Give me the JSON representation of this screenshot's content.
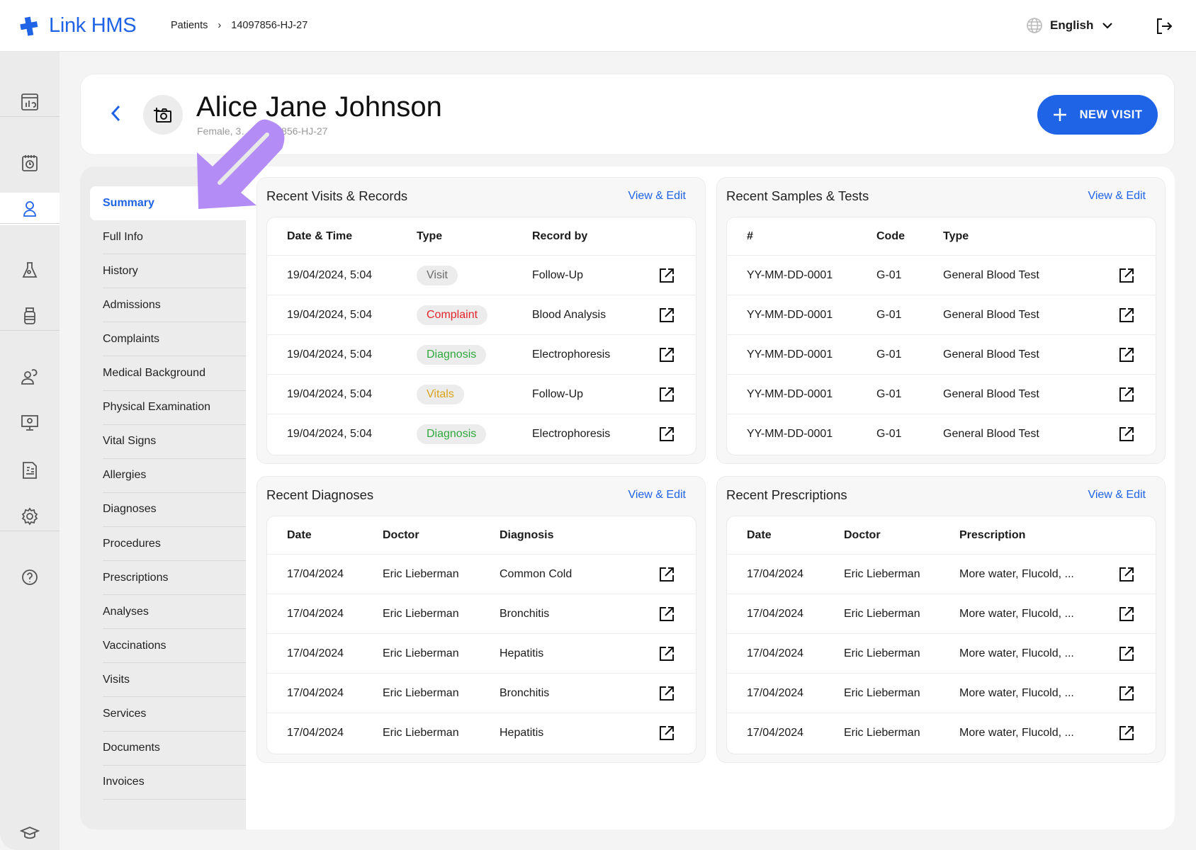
{
  "header": {
    "brand": "Link HMS",
    "breadcrumb": [
      "Patients",
      "14097856-HJ-27"
    ],
    "language": "English"
  },
  "rail": [
    {
      "icon": "dashboard-icon"
    },
    {
      "icon": "calendar-clock-icon"
    },
    {
      "icon": "patient-icon",
      "active": true
    },
    {
      "icon": "lab-flask-icon"
    },
    {
      "icon": "medicine-bottle-icon"
    },
    {
      "icon": "staff-users-icon"
    },
    {
      "icon": "monitor-icon"
    },
    {
      "icon": "billing-icon"
    },
    {
      "icon": "settings-icon"
    },
    {
      "icon": "help-icon"
    },
    {
      "icon": "academy-icon"
    }
  ],
  "patient": {
    "name": "Alice Jane Johnson",
    "subtitle": "Female, 3… 14097856-HJ-27",
    "new_visit": "NEW VISIT"
  },
  "subnav": [
    "Summary",
    "Full Info",
    "History",
    "Admissions",
    "Complaints",
    "Medical Background",
    "Physical Examination",
    "Vital Signs",
    "Allergies",
    "Diagnoses",
    "Procedures",
    "Prescriptions",
    "Analyses",
    "Vaccinations",
    "Visits",
    "Services",
    "Documents",
    "Invoices"
  ],
  "colors": {
    "accent": "#1f63e6",
    "complaint": "#e3242b",
    "diagnosis": "#2eaa3c",
    "vitals": "#d9a21b",
    "visit": "#6b6b6b",
    "annotation_arrow": "#b48cf5"
  },
  "panels": [
    {
      "title": "Recent Visits & Records",
      "link": "View & Edit",
      "columns": [
        "Date & Time",
        "Type",
        "Record by"
      ],
      "rows": [
        [
          "19/04/2024, 5:04",
          "Visit",
          "Follow-Up"
        ],
        [
          "19/04/2024, 5:04",
          "Complaint",
          "Blood Analysis"
        ],
        [
          "19/04/2024, 5:04",
          "Diagnosis",
          "Electrophoresis"
        ],
        [
          "19/04/2024, 5:04",
          "Vitals",
          "Follow-Up"
        ],
        [
          "19/04/2024, 5:04",
          "Diagnosis",
          "Electrophoresis"
        ]
      ]
    },
    {
      "title": "Recent Samples & Tests",
      "link": "View & Edit",
      "columns": [
        "#",
        "Code",
        "Type"
      ],
      "rows": [
        [
          "YY-MM-DD-0001",
          "G-01",
          "General Blood Test"
        ],
        [
          "YY-MM-DD-0001",
          "G-01",
          "General Blood Test"
        ],
        [
          "YY-MM-DD-0001",
          "G-01",
          "General Blood Test"
        ],
        [
          "YY-MM-DD-0001",
          "G-01",
          "General Blood Test"
        ],
        [
          "YY-MM-DD-0001",
          "G-01",
          "General Blood Test"
        ]
      ]
    },
    {
      "title": "Recent Diagnoses",
      "link": "View & Edit",
      "columns": [
        "Date",
        "Doctor",
        "Diagnosis"
      ],
      "rows": [
        [
          "17/04/2024",
          "Eric Lieberman",
          "Common Cold"
        ],
        [
          "17/04/2024",
          "Eric Lieberman",
          "Bronchitis"
        ],
        [
          "17/04/2024",
          "Eric Lieberman",
          "Hepatitis"
        ],
        [
          "17/04/2024",
          "Eric Lieberman",
          "Bronchitis"
        ],
        [
          "17/04/2024",
          "Eric Lieberman",
          "Hepatitis"
        ]
      ]
    },
    {
      "title": "Recent Prescriptions",
      "link": "View & Edit",
      "columns": [
        "Date",
        "Doctor",
        "Prescription"
      ],
      "rows": [
        [
          "17/04/2024",
          "Eric Lieberman",
          "More water, Flucold, ..."
        ],
        [
          "17/04/2024",
          "Eric Lieberman",
          "More water, Flucold, ..."
        ],
        [
          "17/04/2024",
          "Eric Lieberman",
          "More water, Flucold, ..."
        ],
        [
          "17/04/2024",
          "Eric Lieberman",
          "More water, Flucold, ..."
        ],
        [
          "17/04/2024",
          "Eric Lieberman",
          "More water, Flucold, ..."
        ]
      ]
    }
  ]
}
